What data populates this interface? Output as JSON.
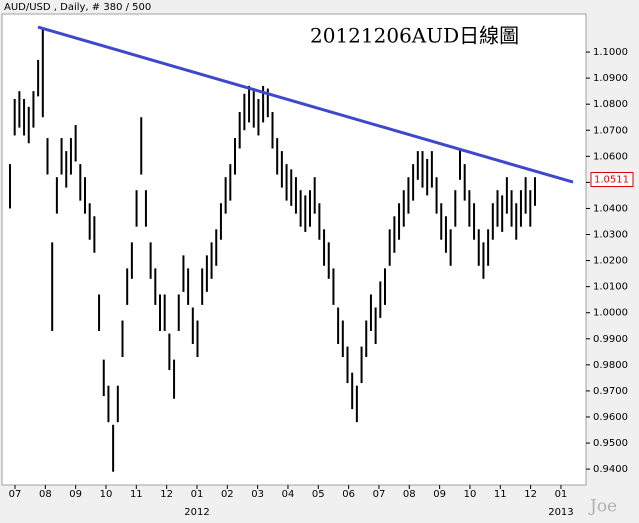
{
  "chart_data": {
    "type": "hlbar",
    "title": "AUD/USD , Daily, # 380 / 500",
    "overlay_title": "20121206AUD日線圖",
    "watermark": "Joe",
    "categories": [
      "07",
      "08",
      "09",
      "10",
      "11",
      "12",
      "01",
      "02",
      "03",
      "04",
      "05",
      "06",
      "07",
      "08",
      "09",
      "10",
      "11",
      "12",
      "01"
    ],
    "years": [
      "2012",
      "2013"
    ],
    "color": "#000000",
    "high": [
      1.057,
      1.082,
      1.085,
      1.082,
      1.079,
      1.085,
      1.097,
      1.109,
      1.067,
      1.027,
      1.052,
      1.067,
      1.062,
      1.067,
      1.072,
      1.057,
      1.052,
      1.042,
      1.037,
      1.007,
      0.982,
      0.972,
      0.957,
      0.972,
      0.997,
      1.017,
      1.027,
      1.047,
      1.075,
      1.047,
      1.027,
      1.017,
      1.007,
      1.007,
      0.992,
      0.982,
      1.007,
      1.022,
      1.017,
      1.002,
      0.997,
      1.017,
      1.022,
      1.027,
      1.032,
      1.042,
      1.052,
      1.057,
      1.067,
      1.077,
      1.084,
      1.087,
      1.085,
      1.082,
      1.087,
      1.086,
      1.077,
      1.067,
      1.062,
      1.057,
      1.055,
      1.052,
      1.047,
      1.045,
      1.047,
      1.052,
      1.042,
      1.032,
      1.027,
      1.017,
      1.002,
      0.997,
      0.987,
      0.977,
      0.972,
      0.987,
      0.997,
      1.007,
      1.002,
      1.012,
      1.017,
      1.032,
      1.037,
      1.042,
      1.047,
      1.052,
      1.057,
      1.062,
      1.062,
      1.059,
      1.062,
      1.052,
      1.042,
      1.037,
      1.032,
      1.047,
      1.063,
      1.057,
      1.047,
      1.042,
      1.032,
      1.027,
      1.032,
      1.042,
      1.047,
      1.045,
      1.052,
      1.047,
      1.042,
      1.047,
      1.052,
      1.047,
      1.052
    ],
    "low": [
      1.04,
      1.068,
      1.071,
      1.068,
      1.065,
      1.071,
      1.083,
      1.075,
      1.053,
      0.993,
      1.038,
      1.053,
      1.048,
      1.053,
      1.058,
      1.043,
      1.038,
      1.028,
      1.023,
      0.993,
      0.968,
      0.958,
      0.939,
      0.958,
      0.983,
      1.003,
      1.013,
      1.033,
      1.053,
      1.033,
      1.013,
      1.003,
      0.993,
      0.993,
      0.978,
      0.967,
      0.993,
      1.008,
      1.003,
      0.988,
      0.983,
      1.003,
      1.008,
      1.013,
      1.018,
      1.028,
      1.038,
      1.043,
      1.053,
      1.063,
      1.07,
      1.073,
      1.071,
      1.068,
      1.073,
      1.075,
      1.063,
      1.053,
      1.048,
      1.043,
      1.041,
      1.038,
      1.033,
      1.031,
      1.033,
      1.038,
      1.028,
      1.018,
      1.013,
      1.003,
      0.988,
      0.983,
      0.973,
      0.963,
      0.958,
      0.973,
      0.983,
      0.993,
      0.988,
      0.998,
      1.003,
      1.018,
      1.023,
      1.028,
      1.033,
      1.038,
      1.043,
      1.051,
      1.048,
      1.045,
      1.048,
      1.038,
      1.028,
      1.023,
      1.018,
      1.033,
      1.051,
      1.043,
      1.033,
      1.028,
      1.018,
      1.013,
      1.018,
      1.028,
      1.033,
      1.031,
      1.038,
      1.033,
      1.028,
      1.033,
      1.038,
      1.033,
      1.041
    ],
    "trendline": {
      "values": [
        1.1096,
        1.0501
      ],
      "color": "#3f48cc"
    },
    "last_price": 1.0511,
    "last_price_color": "#e00000",
    "ylim": [
      0.9339,
      1.1146
    ],
    "yticks": [
      {
        "value": 0.94,
        "label": "0.9400"
      },
      {
        "value": 0.95,
        "label": "0.9500"
      },
      {
        "value": 0.96,
        "label": "0.9600"
      },
      {
        "value": 0.97,
        "label": "0.9700"
      },
      {
        "value": 0.98,
        "label": "0.9800"
      },
      {
        "value": 0.99,
        "label": "0.9900"
      },
      {
        "value": 1.0,
        "label": "1.0000"
      },
      {
        "value": 1.01,
        "label": "1.0100"
      },
      {
        "value": 1.02,
        "label": "1.0200"
      },
      {
        "value": 1.03,
        "label": "1.0300"
      },
      {
        "value": 1.04,
        "label": "1.0400"
      },
      {
        "value": 1.05,
        "label": "1.0500"
      },
      {
        "value": 1.06,
        "label": "1.0600"
      },
      {
        "value": 1.07,
        "label": "1.0700"
      },
      {
        "value": 1.08,
        "label": "1.0800"
      },
      {
        "value": 1.09,
        "label": "1.0900"
      },
      {
        "value": 1.1,
        "label": "1.1000"
      }
    ]
  }
}
